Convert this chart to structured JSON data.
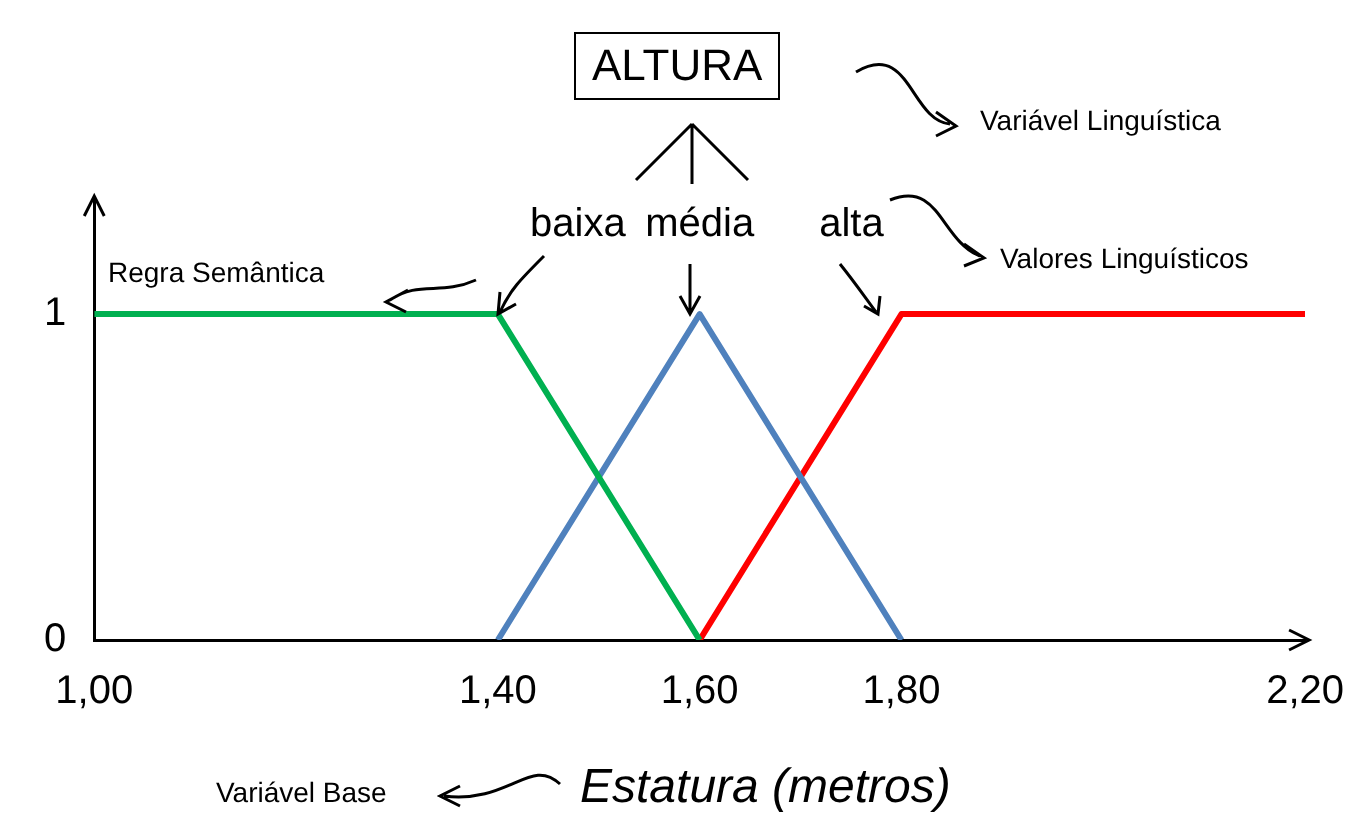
{
  "chart_data": {
    "type": "line",
    "title": "ALTURA",
    "xlabel": "Estatura (metros)",
    "xlim": [
      1.0,
      2.2
    ],
    "xticks": [
      {
        "value": 1.0,
        "label": "1,00"
      },
      {
        "value": 1.4,
        "label": "1,40"
      },
      {
        "value": 1.6,
        "label": "1,60"
      },
      {
        "value": 1.8,
        "label": "1,80"
      },
      {
        "value": 2.2,
        "label": "2,20"
      }
    ],
    "ylim": [
      0,
      1.35
    ],
    "yticks": [
      0,
      1
    ],
    "grid": false,
    "legend": false,
    "marker": "none",
    "line_style": "solid",
    "series": [
      {
        "name": "baixa",
        "color": "#00b050",
        "x": [
          1.0,
          1.4,
          1.6
        ],
        "values": [
          1,
          1,
          0
        ]
      },
      {
        "name": "média",
        "color": "#4f81bd",
        "x": [
          1.4,
          1.6,
          1.8
        ],
        "values": [
          0,
          1,
          0
        ]
      },
      {
        "name": "alta",
        "color": "#ff0000",
        "x": [
          1.6,
          1.8,
          2.2
        ],
        "values": [
          0,
          1,
          1
        ]
      }
    ],
    "annotations": [
      "Variável Linguística",
      "Valores Linguísticos",
      "Regra Semântica",
      "Variável Base"
    ]
  }
}
